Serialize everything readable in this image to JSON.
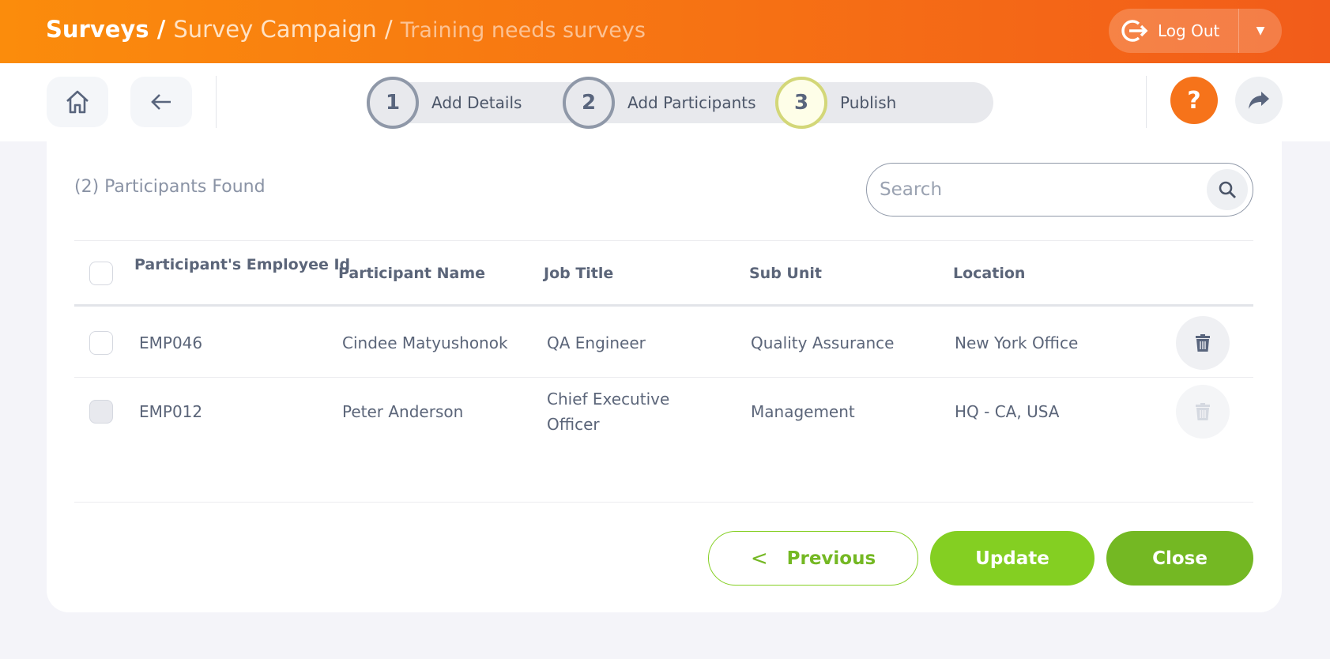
{
  "header": {
    "breadcrumb": [
      "Surveys",
      "Survey Campaign",
      "Training needs surveys"
    ],
    "separator": "/",
    "logout_label": "Log Out"
  },
  "toolbar": {
    "steps": [
      {
        "num": "1",
        "label": "Add Details"
      },
      {
        "num": "2",
        "label": "Add Participants"
      },
      {
        "num": "3",
        "label": "Publish",
        "active": true
      }
    ],
    "help": "?"
  },
  "main": {
    "found": "(2) Participants Found",
    "search_placeholder": "Search",
    "columns": [
      "Participant's Employee Id",
      "Participant Name",
      "Job Title",
      "Sub Unit",
      "Location"
    ],
    "rows": [
      {
        "id": "EMP046",
        "name": "Cindee Matyushonok",
        "job": "QA Engineer",
        "sub": "Quality Assurance",
        "loc": "New York Office",
        "deletable": true
      },
      {
        "id": "EMP012",
        "name": "Peter Anderson",
        "job": "Chief Executive Officer",
        "sub": "Management",
        "loc": "HQ - CA, USA",
        "deletable": false
      }
    ],
    "buttons": {
      "previous": "Previous",
      "update": "Update",
      "close": "Close"
    }
  },
  "colors": {
    "accent": "#f6731a",
    "green": "#84cf22",
    "dark_green": "#74b823"
  }
}
